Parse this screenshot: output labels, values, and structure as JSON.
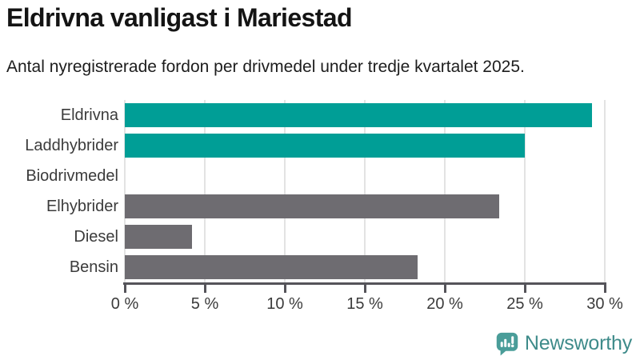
{
  "header": {
    "title": "Eldrivna vanligast i Mariestad",
    "subtitle": "Antal nyregistrerade fordon per drivmedel under tredje kvartalet 2025."
  },
  "chart_data": {
    "type": "bar",
    "orientation": "horizontal",
    "title": "Eldrivna vanligast i Mariestad",
    "subtitle": "Antal nyregistrerade fordon per drivmedel under tredje kvartalet 2025.",
    "categories": [
      "Eldrivna",
      "Laddhybrider",
      "Biodrivmedel",
      "Elhybrider",
      "Diesel",
      "Bensin"
    ],
    "values": [
      29.2,
      25.0,
      0,
      23.4,
      4.2,
      18.3
    ],
    "unit": "%",
    "bar_colors": [
      "#009E96",
      "#009E96",
      "#009E96",
      "#6E6C71",
      "#6E6C71",
      "#6E6C71"
    ],
    "xlabel": "",
    "ylabel": "",
    "xlim": [
      0,
      30
    ],
    "x_ticks": [
      0,
      5,
      10,
      15,
      20,
      25,
      30
    ],
    "x_tick_labels": [
      "0 %",
      "5 %",
      "10 %",
      "15 %",
      "20 %",
      "25 %",
      "30 %"
    ],
    "grid": true,
    "legend": false
  },
  "footer": {
    "brand": "Newsworthy"
  },
  "colors": {
    "teal_bar": "#009E96",
    "gray_bar": "#6E6C71",
    "gridline": "#E3E3E3",
    "axis": "#55545A",
    "logo_icon": "#4A9D99",
    "logo_text": "#3E8B8A"
  }
}
